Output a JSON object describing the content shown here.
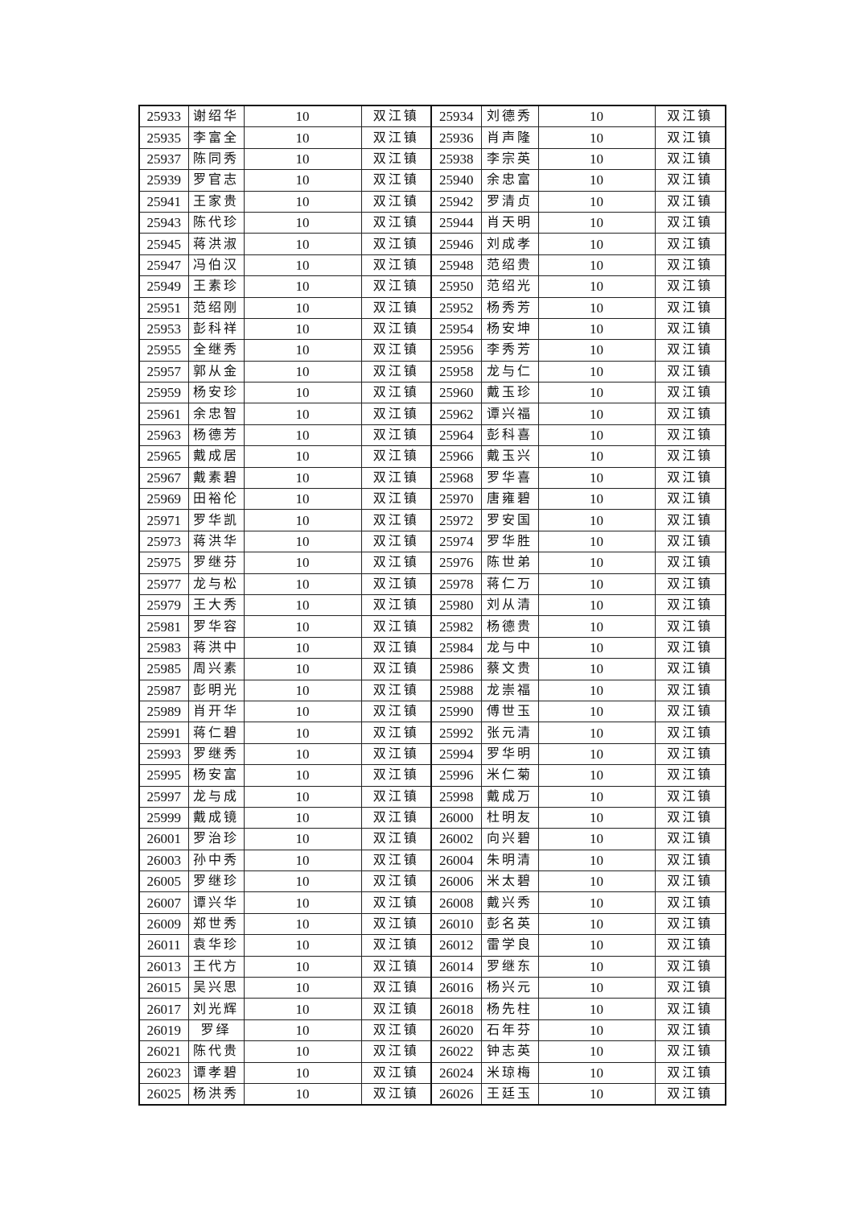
{
  "table": {
    "rows": [
      [
        "25933",
        "谢绍华",
        "10",
        "双江镇",
        "25934",
        "刘德秀",
        "10",
        "双江镇"
      ],
      [
        "25935",
        "李富全",
        "10",
        "双江镇",
        "25936",
        "肖声隆",
        "10",
        "双江镇"
      ],
      [
        "25937",
        "陈同秀",
        "10",
        "双江镇",
        "25938",
        "李宗英",
        "10",
        "双江镇"
      ],
      [
        "25939",
        "罗官志",
        "10",
        "双江镇",
        "25940",
        "余忠富",
        "10",
        "双江镇"
      ],
      [
        "25941",
        "王家贵",
        "10",
        "双江镇",
        "25942",
        "罗清贞",
        "10",
        "双江镇"
      ],
      [
        "25943",
        "陈代珍",
        "10",
        "双江镇",
        "25944",
        "肖天明",
        "10",
        "双江镇"
      ],
      [
        "25945",
        "蒋洪淑",
        "10",
        "双江镇",
        "25946",
        "刘成孝",
        "10",
        "双江镇"
      ],
      [
        "25947",
        "冯伯汉",
        "10",
        "双江镇",
        "25948",
        "范绍贵",
        "10",
        "双江镇"
      ],
      [
        "25949",
        "王素珍",
        "10",
        "双江镇",
        "25950",
        "范绍光",
        "10",
        "双江镇"
      ],
      [
        "25951",
        "范绍刚",
        "10",
        "双江镇",
        "25952",
        "杨秀芳",
        "10",
        "双江镇"
      ],
      [
        "25953",
        "彭科祥",
        "10",
        "双江镇",
        "25954",
        "杨安坤",
        "10",
        "双江镇"
      ],
      [
        "25955",
        "全继秀",
        "10",
        "双江镇",
        "25956",
        "李秀芳",
        "10",
        "双江镇"
      ],
      [
        "25957",
        "郭从金",
        "10",
        "双江镇",
        "25958",
        "龙与仁",
        "10",
        "双江镇"
      ],
      [
        "25959",
        "杨安珍",
        "10",
        "双江镇",
        "25960",
        "戴玉珍",
        "10",
        "双江镇"
      ],
      [
        "25961",
        "余忠智",
        "10",
        "双江镇",
        "25962",
        "谭兴福",
        "10",
        "双江镇"
      ],
      [
        "25963",
        "杨德芳",
        "10",
        "双江镇",
        "25964",
        "彭科喜",
        "10",
        "双江镇"
      ],
      [
        "25965",
        "戴成居",
        "10",
        "双江镇",
        "25966",
        "戴玉兴",
        "10",
        "双江镇"
      ],
      [
        "25967",
        "戴素碧",
        "10",
        "双江镇",
        "25968",
        "罗华喜",
        "10",
        "双江镇"
      ],
      [
        "25969",
        "田裕伦",
        "10",
        "双江镇",
        "25970",
        "唐雍碧",
        "10",
        "双江镇"
      ],
      [
        "25971",
        "罗华凯",
        "10",
        "双江镇",
        "25972",
        "罗安国",
        "10",
        "双江镇"
      ],
      [
        "25973",
        "蒋洪华",
        "10",
        "双江镇",
        "25974",
        "罗华胜",
        "10",
        "双江镇"
      ],
      [
        "25975",
        "罗继芬",
        "10",
        "双江镇",
        "25976",
        "陈世弟",
        "10",
        "双江镇"
      ],
      [
        "25977",
        "龙与松",
        "10",
        "双江镇",
        "25978",
        "蒋仁万",
        "10",
        "双江镇"
      ],
      [
        "25979",
        "王大秀",
        "10",
        "双江镇",
        "25980",
        "刘从清",
        "10",
        "双江镇"
      ],
      [
        "25981",
        "罗华容",
        "10",
        "双江镇",
        "25982",
        "杨德贵",
        "10",
        "双江镇"
      ],
      [
        "25983",
        "蒋洪中",
        "10",
        "双江镇",
        "25984",
        "龙与中",
        "10",
        "双江镇"
      ],
      [
        "25985",
        "周兴素",
        "10",
        "双江镇",
        "25986",
        "蔡文贵",
        "10",
        "双江镇"
      ],
      [
        "25987",
        "彭明光",
        "10",
        "双江镇",
        "25988",
        "龙崇福",
        "10",
        "双江镇"
      ],
      [
        "25989",
        "肖开华",
        "10",
        "双江镇",
        "25990",
        "傅世玉",
        "10",
        "双江镇"
      ],
      [
        "25991",
        "蒋仁碧",
        "10",
        "双江镇",
        "25992",
        "张元清",
        "10",
        "双江镇"
      ],
      [
        "25993",
        "罗继秀",
        "10",
        "双江镇",
        "25994",
        "罗华明",
        "10",
        "双江镇"
      ],
      [
        "25995",
        "杨安富",
        "10",
        "双江镇",
        "25996",
        "米仁菊",
        "10",
        "双江镇"
      ],
      [
        "25997",
        "龙与成",
        "10",
        "双江镇",
        "25998",
        "戴成万",
        "10",
        "双江镇"
      ],
      [
        "25999",
        "戴成镜",
        "10",
        "双江镇",
        "26000",
        "杜明友",
        "10",
        "双江镇"
      ],
      [
        "26001",
        "罗治珍",
        "10",
        "双江镇",
        "26002",
        "向兴碧",
        "10",
        "双江镇"
      ],
      [
        "26003",
        "孙中秀",
        "10",
        "双江镇",
        "26004",
        "朱明清",
        "10",
        "双江镇"
      ],
      [
        "26005",
        "罗继珍",
        "10",
        "双江镇",
        "26006",
        "米太碧",
        "10",
        "双江镇"
      ],
      [
        "26007",
        "谭兴华",
        "10",
        "双江镇",
        "26008",
        "戴兴秀",
        "10",
        "双江镇"
      ],
      [
        "26009",
        "郑世秀",
        "10",
        "双江镇",
        "26010",
        "彭名英",
        "10",
        "双江镇"
      ],
      [
        "26011",
        "袁华珍",
        "10",
        "双江镇",
        "26012",
        "雷学良",
        "10",
        "双江镇"
      ],
      [
        "26013",
        "王代方",
        "10",
        "双江镇",
        "26014",
        "罗继东",
        "10",
        "双江镇"
      ],
      [
        "26015",
        "吴兴思",
        "10",
        "双江镇",
        "26016",
        "杨兴元",
        "10",
        "双江镇"
      ],
      [
        "26017",
        "刘光辉",
        "10",
        "双江镇",
        "26018",
        "杨先柱",
        "10",
        "双江镇"
      ],
      [
        "26019",
        "罗绎",
        "10",
        "双江镇",
        "26020",
        "石年芬",
        "10",
        "双江镇"
      ],
      [
        "26021",
        "陈代贵",
        "10",
        "双江镇",
        "26022",
        "钟志英",
        "10",
        "双江镇"
      ],
      [
        "26023",
        "谭孝碧",
        "10",
        "双江镇",
        "26024",
        "米琼梅",
        "10",
        "双江镇"
      ],
      [
        "26025",
        "杨洪秀",
        "10",
        "双江镇",
        "26026",
        "王廷玉",
        "10",
        "双江镇"
      ]
    ]
  }
}
